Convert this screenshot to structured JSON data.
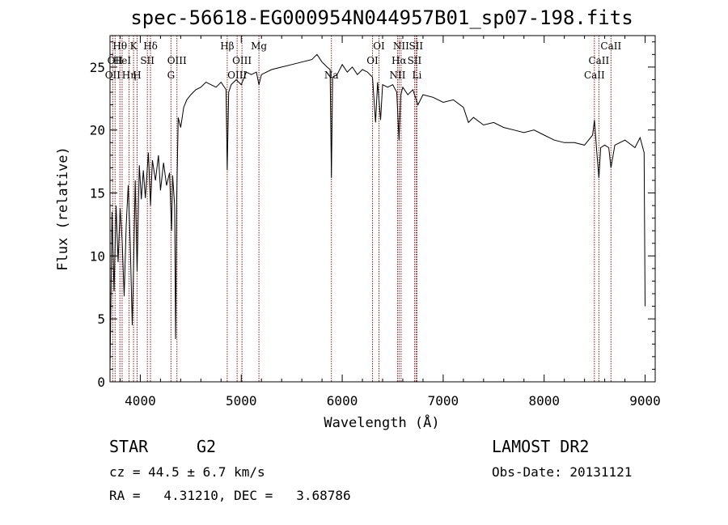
{
  "chart_data": {
    "type": "line",
    "title": "spec-56618-EG000954N044957B01_sp07-198.fits",
    "xlabel": "Wavelength (Å)",
    "ylabel": "Flux (relative)",
    "xlim": [
      3700,
      9100
    ],
    "ylim": [
      0,
      27.5
    ],
    "x_ticks": [
      4000,
      5000,
      6000,
      7000,
      8000,
      9000
    ],
    "y_ticks": [
      0,
      5,
      10,
      15,
      20,
      25
    ],
    "grid": false,
    "series": [
      {
        "x": [
          3700,
          3720,
          3740,
          3760,
          3780,
          3800,
          3820,
          3840,
          3860,
          3880,
          3900,
          3920,
          3933,
          3950,
          3968,
          3990,
          4010,
          4030,
          4050,
          4080,
          4101,
          4120,
          4150,
          4180,
          4200,
          4230,
          4260,
          4290,
          4310,
          4320,
          4340,
          4350,
          4361,
          4375,
          4400,
          4430,
          4460,
          4500,
          4550,
          4600,
          4650,
          4700,
          4750,
          4800,
          4850,
          4861,
          4875,
          4900,
          4950,
          5000,
          5050,
          5100,
          5150,
          5175,
          5200,
          5300,
          5400,
          5500,
          5600,
          5700,
          5750,
          5800,
          5850,
          5880,
          5893,
          5905,
          5950,
          6000,
          6050,
          6100,
          6150,
          6200,
          6250,
          6300,
          6330,
          6350,
          6380,
          6400,
          6450,
          6500,
          6540,
          6563,
          6580,
          6600,
          6650,
          6700,
          6750,
          6800,
          6900,
          7000,
          7100,
          7200,
          7250,
          7300,
          7400,
          7500,
          7600,
          7700,
          7800,
          7900,
          8000,
          8100,
          8200,
          8300,
          8400,
          8480,
          8498,
          8520,
          8542,
          8560,
          8600,
          8640,
          8662,
          8700,
          8800,
          8900,
          8950,
          8990,
          9000
        ],
        "values": [
          0.8,
          13.5,
          7.2,
          14.0,
          9.5,
          13.8,
          11.2,
          6.8,
          12.4,
          15.6,
          11.0,
          4.5,
          9.0,
          16.0,
          8.8,
          17.2,
          14.5,
          16.8,
          14.6,
          18.2,
          14.0,
          17.6,
          16.0,
          18.0,
          15.2,
          17.4,
          15.6,
          16.6,
          12.0,
          16.4,
          14.0,
          3.4,
          14.6,
          21.0,
          20.2,
          21.8,
          22.4,
          22.8,
          23.2,
          23.4,
          23.8,
          23.6,
          23.4,
          23.8,
          23.2,
          16.8,
          23.0,
          23.6,
          24.0,
          23.6,
          24.6,
          24.4,
          24.6,
          23.6,
          24.4,
          24.8,
          25.0,
          25.2,
          25.4,
          25.6,
          26.0,
          25.4,
          25.0,
          24.8,
          16.2,
          24.2,
          24.4,
          25.2,
          24.6,
          25.0,
          24.4,
          24.8,
          24.6,
          24.2,
          20.6,
          23.8,
          20.8,
          23.6,
          23.4,
          23.6,
          23.0,
          19.2,
          22.8,
          23.4,
          22.8,
          23.2,
          22.0,
          22.8,
          22.6,
          22.2,
          22.4,
          21.8,
          20.6,
          21.0,
          20.4,
          20.6,
          20.2,
          20.0,
          19.8,
          20.0,
          19.6,
          19.2,
          19.0,
          19.0,
          18.8,
          19.6,
          20.8,
          18.4,
          16.2,
          18.6,
          18.8,
          18.6,
          17.0,
          18.8,
          19.2,
          18.6,
          19.4,
          18.2,
          6.0
        ]
      }
    ],
    "line_markers": [
      {
        "wavelength": 3727,
        "label": "OII",
        "row": 2,
        "color": "#8b1a1a"
      },
      {
        "wavelength": 3750,
        "label": "OII",
        "row": 1,
        "color": "#8b1a1a"
      },
      {
        "wavelength": 3798,
        "label": "Hθ",
        "row": 0,
        "color": "#8b1a1a"
      },
      {
        "wavelength": 3820,
        "label": "HeI",
        "row": 1,
        "color": "#8b1a1a"
      },
      {
        "wavelength": 3889,
        "label": "Hη",
        "row": 2,
        "color": "#8b1a1a"
      },
      {
        "wavelength": 3933,
        "label": "K",
        "row": 0,
        "color": "#8b1a1a"
      },
      {
        "wavelength": 3968,
        "label": "H",
        "row": 2,
        "color": "#8b1a1a"
      },
      {
        "wavelength": 4070,
        "label": "SII",
        "row": 1,
        "color": "#8b1a1a"
      },
      {
        "wavelength": 4101,
        "label": "Hδ",
        "row": 0,
        "color": "#8b1a1a"
      },
      {
        "wavelength": 4304,
        "label": "G",
        "row": 2,
        "color": "#8b1a1a"
      },
      {
        "wavelength": 4363,
        "label": "OIII",
        "row": 1,
        "color": "#8b1a1a"
      },
      {
        "wavelength": 4861,
        "label": "Hβ",
        "row": 0,
        "color": "#8b1a1a"
      },
      {
        "wavelength": 4959,
        "label": "OIII",
        "row": 2,
        "color": "#8b1a1a"
      },
      {
        "wavelength": 5007,
        "label": "OIII",
        "row": 1,
        "color": "#8b1a1a"
      },
      {
        "wavelength": 5175,
        "label": "Mg",
        "row": 0,
        "color": "#8b1a1a"
      },
      {
        "wavelength": 5893,
        "label": "Na",
        "row": 2,
        "color": "#8b1a1a"
      },
      {
        "wavelength": 6300,
        "label": "OI",
        "row": 1,
        "color": "#8b1a1a"
      },
      {
        "wavelength": 6364,
        "label": "OI",
        "row": 0,
        "color": "#8b1a1a"
      },
      {
        "wavelength": 6548,
        "label": "NII",
        "row": 2,
        "color": "#8b1a1a"
      },
      {
        "wavelength": 6563,
        "label": "Hα",
        "row": 1,
        "color": "#8b1a1a"
      },
      {
        "wavelength": 6583,
        "label": "NII",
        "row": 0,
        "color": "#8b1a1a"
      },
      {
        "wavelength": 6716,
        "label": "SII",
        "row": 1,
        "color": "#8b1a1a"
      },
      {
        "wavelength": 6731,
        "label": "SII",
        "row": 0,
        "color": "#8b1a1a"
      },
      {
        "wavelength": 6740,
        "label": "Li",
        "row": 2,
        "color": "#8b1a1a"
      },
      {
        "wavelength": 8498,
        "label": "CaII",
        "row": 2,
        "color": "#8b1a1a"
      },
      {
        "wavelength": 8542,
        "label": "CaII",
        "row": 1,
        "color": "#8b1a1a"
      },
      {
        "wavelength": 8662,
        "label": "CaII",
        "row": 0,
        "color": "#8b1a1a"
      }
    ]
  },
  "info": {
    "class_label": "STAR",
    "subclass_label": "G2",
    "survey": "LAMOST DR2",
    "cz_line": "cz = 44.5 ± 6.7 km/s",
    "obs_date": "Obs-Date: 20131121",
    "radec_line": "RA =   4.31210, DEC =   3.68786"
  },
  "colors": {
    "spectrum": "#000000",
    "line_marker": "#8b1a1a",
    "axes": "#000000"
  }
}
